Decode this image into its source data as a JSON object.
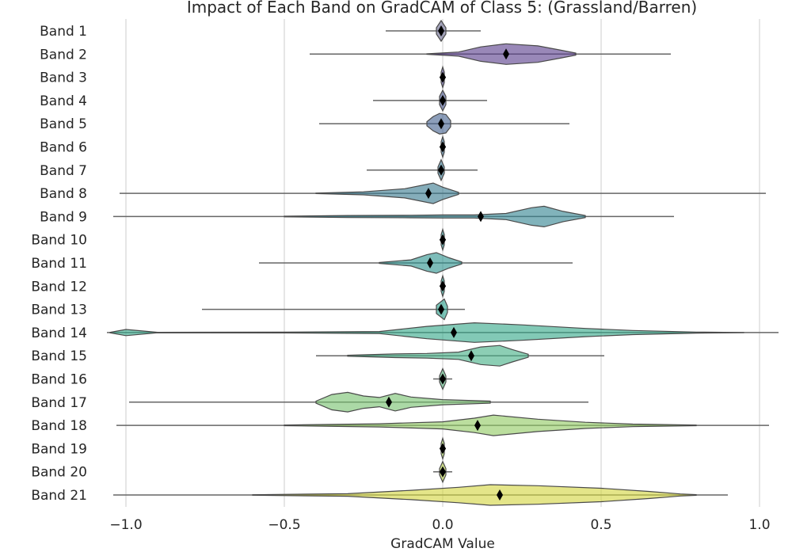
{
  "chart_data": {
    "type": "violin",
    "title": "Impact of Each Band on GradCAM of Class 5: (Grassland/Barren)",
    "xlabel": "GradCAM Value",
    "ylabel": "",
    "xlim": [
      -1.07,
      1.07
    ],
    "xticks": [
      -1.0,
      -0.5,
      0.0,
      0.5,
      1.0
    ],
    "xtick_labels": [
      "−1.0",
      "−0.5",
      "0.0",
      "0.5",
      "1.0"
    ],
    "grid": "vertical",
    "palette": [
      "#440154",
      "#482878",
      "#3e4989",
      "#31688e",
      "#26828e",
      "#1f9e89",
      "#35b779",
      "#6ece58",
      "#b5de2b",
      "#fde725"
    ],
    "categories": [
      "Band 1",
      "Band 2",
      "Band 3",
      "Band 4",
      "Band 5",
      "Band 6",
      "Band 7",
      "Band 8",
      "Band 9",
      "Band 10",
      "Band 11",
      "Band 12",
      "Band 13",
      "Band 14",
      "Band 15",
      "Band 16",
      "Band 17",
      "Band 18",
      "Band 19",
      "Band 20",
      "Band 21"
    ],
    "bands": [
      {
        "name": "Band 1",
        "min": -0.18,
        "max": 0.12,
        "mean": -0.005,
        "color": "#6b6b8f",
        "density": [
          [
            -0.02,
            0.3
          ],
          [
            -0.005,
            1.0
          ],
          [
            0.01,
            0.3
          ]
        ]
      },
      {
        "name": "Band 2",
        "min": -0.42,
        "max": 0.72,
        "mean": 0.2,
        "color": "#5b3f8c",
        "density": [
          [
            -0.05,
            0.02
          ],
          [
            0.05,
            0.2
          ],
          [
            0.12,
            0.7
          ],
          [
            0.2,
            1.0
          ],
          [
            0.3,
            0.8
          ],
          [
            0.37,
            0.4
          ],
          [
            0.42,
            0.1
          ]
        ]
      },
      {
        "name": "Band 3",
        "min": -0.01,
        "max": 0.01,
        "mean": 0.0,
        "color": "#554c8e",
        "density": [
          [
            -0.005,
            0.5
          ],
          [
            0.0,
            1.0
          ],
          [
            0.005,
            0.5
          ]
        ]
      },
      {
        "name": "Band 4",
        "min": -0.22,
        "max": 0.14,
        "mean": 0.0,
        "color": "#4a578f",
        "density": [
          [
            -0.01,
            0.4
          ],
          [
            0.0,
            1.0
          ],
          [
            0.01,
            0.4
          ]
        ]
      },
      {
        "name": "Band 5",
        "min": -0.39,
        "max": 0.4,
        "mean": -0.005,
        "color": "#456390",
        "density": [
          [
            -0.05,
            0.2
          ],
          [
            -0.03,
            0.7
          ],
          [
            -0.01,
            1.0
          ],
          [
            0.01,
            0.9
          ],
          [
            0.025,
            0.3
          ]
        ]
      },
      {
        "name": "Band 6",
        "min": -0.01,
        "max": 0.01,
        "mean": 0.0,
        "color": "#3f6d8f",
        "density": [
          [
            -0.005,
            0.5
          ],
          [
            0.0,
            1.0
          ],
          [
            0.005,
            0.5
          ]
        ]
      },
      {
        "name": "Band 7",
        "min": -0.24,
        "max": 0.11,
        "mean": -0.005,
        "color": "#3a778f",
        "density": [
          [
            -0.015,
            0.3
          ],
          [
            -0.005,
            1.0
          ],
          [
            0.005,
            0.3
          ]
        ]
      },
      {
        "name": "Band 8",
        "min": -1.02,
        "max": 1.02,
        "mean": -0.045,
        "color": "#3a7b90",
        "density": [
          [
            -0.4,
            0.02
          ],
          [
            -0.25,
            0.15
          ],
          [
            -0.12,
            0.45
          ],
          [
            -0.03,
            1.0
          ],
          [
            0.0,
            0.6
          ],
          [
            0.05,
            0.1
          ]
        ]
      },
      {
        "name": "Band 9",
        "min": -1.04,
        "max": 0.73,
        "mean": 0.12,
        "color": "#348592",
        "density": [
          [
            -0.5,
            0.03
          ],
          [
            -0.3,
            0.1
          ],
          [
            -0.1,
            0.12
          ],
          [
            0.0,
            0.15
          ],
          [
            0.1,
            0.15
          ],
          [
            0.2,
            0.3
          ],
          [
            0.28,
            0.85
          ],
          [
            0.32,
            1.0
          ],
          [
            0.38,
            0.5
          ],
          [
            0.45,
            0.1
          ]
        ]
      },
      {
        "name": "Band 10",
        "min": -0.01,
        "max": 0.01,
        "mean": 0.0,
        "color": "#2f8d8f",
        "density": [
          [
            -0.005,
            0.5
          ],
          [
            0.0,
            1.0
          ],
          [
            0.005,
            0.5
          ]
        ]
      },
      {
        "name": "Band 11",
        "min": -0.58,
        "max": 0.41,
        "mean": -0.04,
        "color": "#2d938e",
        "density": [
          [
            -0.2,
            0.05
          ],
          [
            -0.1,
            0.3
          ],
          [
            -0.05,
            0.8
          ],
          [
            -0.02,
            1.0
          ],
          [
            0.02,
            0.5
          ],
          [
            0.06,
            0.1
          ]
        ]
      },
      {
        "name": "Band 12",
        "min": -0.01,
        "max": 0.01,
        "mean": 0.0,
        "color": "#2a998c",
        "density": [
          [
            -0.005,
            0.5
          ],
          [
            0.0,
            1.0
          ],
          [
            0.005,
            0.5
          ]
        ]
      },
      {
        "name": "Band 13",
        "min": -0.76,
        "max": 0.07,
        "mean": -0.005,
        "color": "#2aa08a",
        "density": [
          [
            -0.02,
            0.4
          ],
          [
            0.005,
            1.0
          ],
          [
            0.015,
            0.3
          ]
        ]
      },
      {
        "name": "Band 14",
        "min": -1.06,
        "max": 1.06,
        "mean": 0.035,
        "color": "#35a889",
        "density": [
          [
            -1.05,
            0.02
          ],
          [
            -1.0,
            0.3
          ],
          [
            -0.9,
            0.02
          ],
          [
            -0.5,
            0.04
          ],
          [
            -0.2,
            0.1
          ],
          [
            -0.05,
            0.6
          ],
          [
            0.1,
            0.95
          ],
          [
            0.25,
            0.75
          ],
          [
            0.45,
            0.4
          ],
          [
            0.6,
            0.2
          ],
          [
            0.8,
            0.05
          ],
          [
            0.95,
            0.01
          ]
        ]
      },
      {
        "name": "Band 15",
        "min": -0.4,
        "max": 0.51,
        "mean": 0.09,
        "color": "#45b086",
        "density": [
          [
            -0.3,
            0.05
          ],
          [
            -0.15,
            0.18
          ],
          [
            -0.05,
            0.22
          ],
          [
            0.05,
            0.35
          ],
          [
            0.12,
            0.85
          ],
          [
            0.18,
            1.0
          ],
          [
            0.22,
            0.6
          ],
          [
            0.27,
            0.15
          ]
        ]
      },
      {
        "name": "Band 16",
        "min": -0.03,
        "max": 0.03,
        "mean": 0.0,
        "color": "#5bb883",
        "density": [
          [
            -0.01,
            0.3
          ],
          [
            0.0,
            1.0
          ],
          [
            0.01,
            0.3
          ]
        ]
      },
      {
        "name": "Band 17",
        "min": -0.99,
        "max": 0.46,
        "mean": -0.17,
        "color": "#78c26f",
        "density": [
          [
            -0.4,
            0.1
          ],
          [
            -0.35,
            0.75
          ],
          [
            -0.3,
            0.95
          ],
          [
            -0.25,
            0.6
          ],
          [
            -0.2,
            0.45
          ],
          [
            -0.15,
            0.85
          ],
          [
            -0.1,
            0.5
          ],
          [
            0.0,
            0.25
          ],
          [
            0.15,
            0.1
          ]
        ]
      },
      {
        "name": "Band 18",
        "min": -1.03,
        "max": 1.03,
        "mean": 0.11,
        "color": "#92ca63",
        "density": [
          [
            -0.5,
            0.03
          ],
          [
            -0.2,
            0.15
          ],
          [
            0.0,
            0.35
          ],
          [
            0.1,
            0.7
          ],
          [
            0.16,
            1.0
          ],
          [
            0.3,
            0.6
          ],
          [
            0.45,
            0.3
          ],
          [
            0.6,
            0.12
          ],
          [
            0.8,
            0.03
          ]
        ]
      },
      {
        "name": "Band 19",
        "min": -0.01,
        "max": 0.01,
        "mean": 0.0,
        "color": "#a8d05a",
        "density": [
          [
            -0.005,
            0.5
          ],
          [
            0.0,
            1.0
          ],
          [
            0.005,
            0.5
          ]
        ]
      },
      {
        "name": "Band 20",
        "min": -0.03,
        "max": 0.03,
        "mean": 0.0,
        "color": "#bcd34e",
        "density": [
          [
            -0.01,
            0.3
          ],
          [
            0.0,
            1.0
          ],
          [
            0.01,
            0.3
          ]
        ]
      },
      {
        "name": "Band 21",
        "min": -1.04,
        "max": 0.9,
        "mean": 0.18,
        "color": "#d3d540",
        "density": [
          [
            -0.6,
            0.02
          ],
          [
            -0.3,
            0.12
          ],
          [
            -0.1,
            0.45
          ],
          [
            0.05,
            0.75
          ],
          [
            0.15,
            1.0
          ],
          [
            0.3,
            0.9
          ],
          [
            0.5,
            0.65
          ],
          [
            0.65,
            0.35
          ],
          [
            0.75,
            0.1
          ],
          [
            0.8,
            0.03
          ]
        ]
      }
    ]
  }
}
